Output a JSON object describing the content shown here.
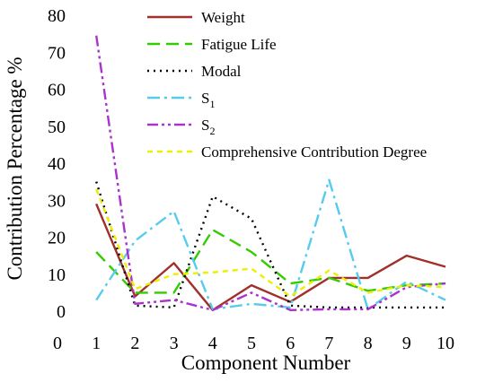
{
  "chart_data": {
    "type": "line",
    "xlabel": "Component Number",
    "ylabel": "Contribution Percentage %",
    "xlim": [
      0,
      10
    ],
    "ylim": [
      0,
      80
    ],
    "x_ticks": [
      "0",
      "1",
      "2",
      "3",
      "4",
      "5",
      "6",
      "7",
      "8",
      "9",
      "10"
    ],
    "y_ticks": [
      "0",
      "10",
      "20",
      "30",
      "40",
      "50",
      "60",
      "70",
      "80"
    ],
    "x": [
      1,
      2,
      3,
      4,
      5,
      6,
      7,
      8,
      9,
      10
    ],
    "legend_position": "top-right",
    "series": [
      {
        "name": "Weight",
        "sub": "",
        "color": "#a0302a",
        "dash": "solid",
        "values": [
          29,
          4,
          13,
          0.3,
          7,
          2.5,
          9,
          9,
          15,
          12
        ]
      },
      {
        "name": "Fatigue Life",
        "sub": "",
        "color": "#33cc00",
        "dash": "long-dash",
        "values": [
          16,
          5,
          5,
          22,
          16,
          7.5,
          9,
          5.5,
          7,
          7.5
        ]
      },
      {
        "name": "Modal",
        "sub": "",
        "color": "#000000",
        "dash": "dotted",
        "values": [
          35,
          1.5,
          1,
          31,
          25,
          1.5,
          1,
          1,
          1,
          1
        ]
      },
      {
        "name": "S",
        "sub": "1",
        "color": "#55ccee",
        "dash": "dash-dot",
        "values": [
          3,
          19,
          27,
          0.5,
          2,
          1,
          35.5,
          0.5,
          8,
          3
        ]
      },
      {
        "name": "S",
        "sub": "2",
        "color": "#aa33cc",
        "dash": "dash-dot-dot",
        "values": [
          74.5,
          2,
          3,
          0.3,
          5,
          0.3,
          0.5,
          0.5,
          6.5,
          7.5
        ]
      },
      {
        "name": "Comprehensive Contribution Degree",
        "sub": "",
        "color": "#eeee00",
        "dash": "short-dash",
        "values": [
          33,
          6,
          10,
          10.5,
          11.5,
          4,
          11,
          5,
          7,
          6.5
        ]
      }
    ]
  }
}
